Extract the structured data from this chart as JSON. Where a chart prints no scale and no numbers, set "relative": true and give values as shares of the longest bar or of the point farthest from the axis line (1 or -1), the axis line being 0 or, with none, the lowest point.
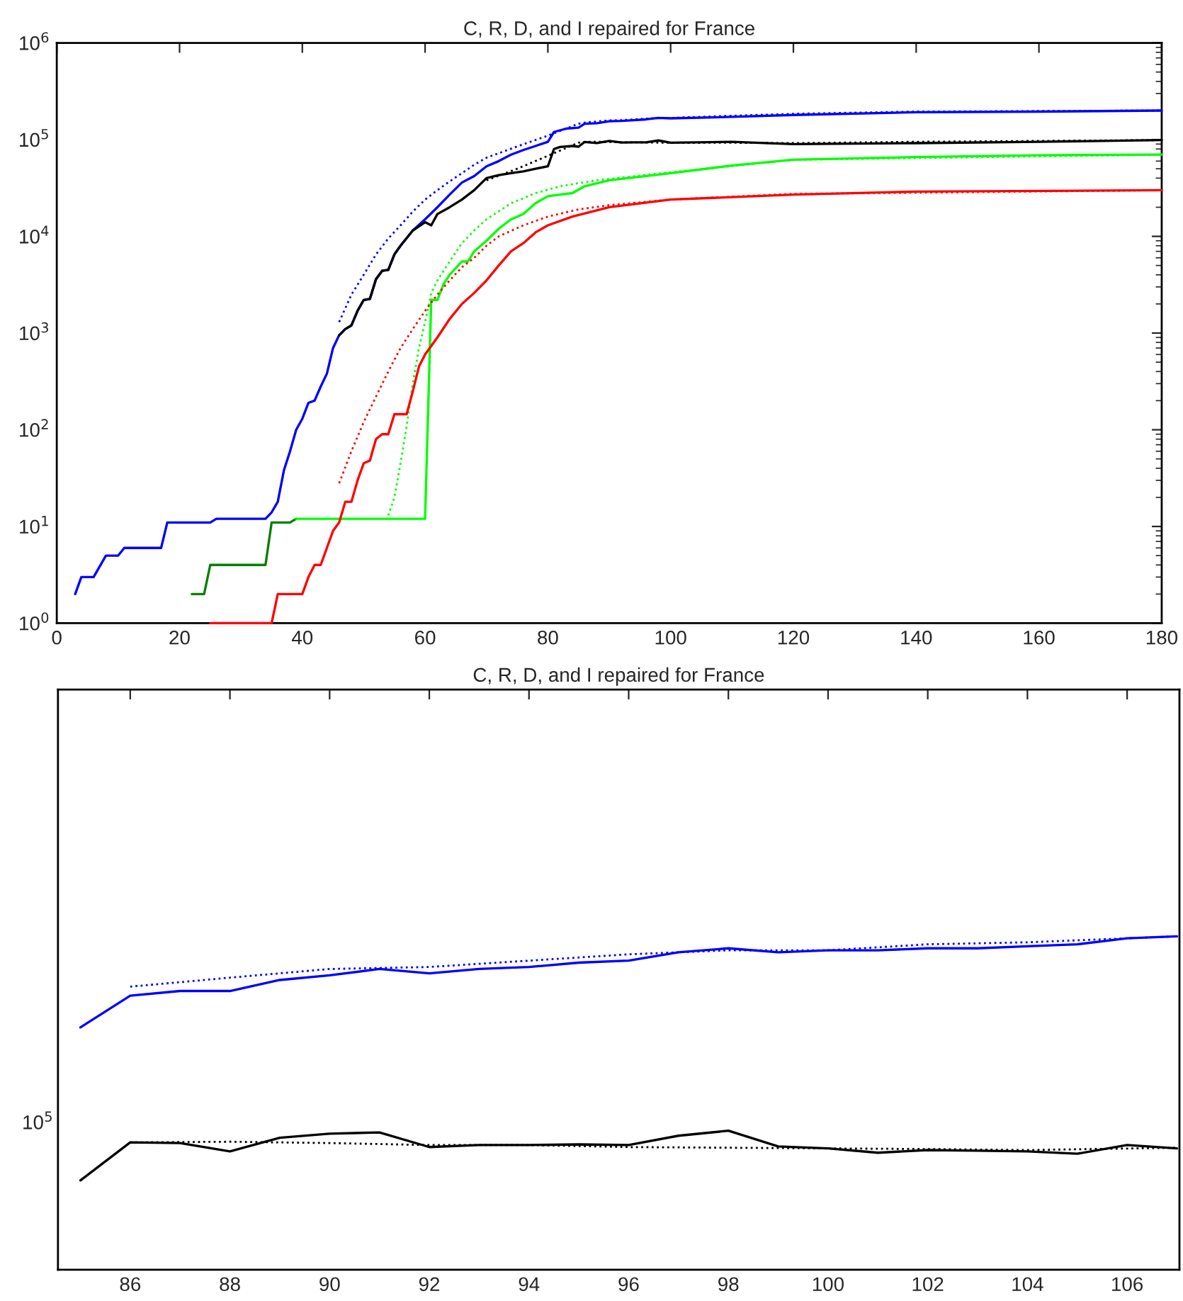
{
  "chart_data": [
    {
      "type": "line",
      "title": "C, R, D, and I repaired for France",
      "log": true,
      "xlim": [
        0,
        180
      ],
      "ylim": [
        1,
        1000000
      ],
      "xticks": [
        0,
        20,
        40,
        60,
        80,
        100,
        120,
        140,
        160,
        180
      ],
      "yticks": [
        {
          "value": 1,
          "label": "10$^{0}$"
        },
        {
          "value": 10,
          "label": "10$^{1}$"
        },
        {
          "value": 100,
          "label": "10$^{2}$"
        },
        {
          "value": 1000,
          "label": "10$^{3}$"
        },
        {
          "value": 10000,
          "label": "10$^{4}$"
        },
        {
          "value": 100000,
          "label": "10$^{5}$"
        },
        {
          "value": 1000000,
          "label": "10$^{6}$"
        }
      ],
      "series": [
        {
          "color": "#0000ff",
          "line_style": "solid",
          "x": [
            3,
            4,
            6,
            8,
            10,
            11,
            17,
            18,
            25,
            26,
            34,
            35,
            36,
            37,
            38,
            39,
            40,
            41,
            42,
            43,
            44,
            45,
            46,
            47,
            48,
            49,
            50,
            51,
            52,
            53,
            54,
            55,
            56,
            58,
            60,
            62,
            64,
            66,
            68,
            70,
            72,
            74,
            76,
            78,
            80,
            81,
            83,
            85,
            86,
            88,
            90,
            92,
            94,
            96,
            98,
            100,
            110,
            120,
            140,
            160,
            180
          ],
          "values": [
            2,
            3,
            3,
            5,
            5,
            6,
            6,
            11,
            11,
            12,
            12,
            14,
            18,
            38,
            60,
            100,
            130,
            190,
            200,
            280,
            380,
            700,
            950,
            1100,
            1200,
            1700,
            2200,
            2250,
            3600,
            4400,
            4500,
            6500,
            8000,
            11500,
            15000,
            20000,
            27000,
            36000,
            42000,
            53000,
            60000,
            70000,
            78000,
            86000,
            95000,
            120000,
            130000,
            133000,
            146000,
            148000,
            155000,
            156000,
            159000,
            162000,
            168000,
            166000,
            172000,
            180000,
            192000,
            195000,
            200000
          ]
        },
        {
          "color": "#0000ff",
          "line_style": "dotted",
          "x": [
            46,
            48,
            50,
            52,
            54,
            56,
            58,
            60,
            62,
            64,
            66,
            68,
            70,
            75,
            80,
            85,
            86,
            88,
            90,
            92,
            94,
            96,
            98,
            100,
            102,
            104,
            107,
            120,
            140,
            180
          ],
          "values": [
            1300,
            2500,
            4000,
            6500,
            9500,
            13000,
            18000,
            24000,
            30000,
            37000,
            45000,
            55000,
            65000,
            85000,
            110000,
            146000,
            150000,
            154000,
            158000,
            159000,
            162000,
            165000,
            167000,
            167000,
            170000,
            171000,
            174000,
            185000,
            195000,
            200000
          ]
        },
        {
          "color": "#000000",
          "line_style": "solid",
          "x": [
            46,
            47,
            48,
            49,
            50,
            51,
            52,
            53,
            54,
            55,
            56,
            58,
            60,
            61,
            62,
            64,
            66,
            68,
            70,
            72,
            74,
            76,
            78,
            80,
            81,
            82,
            84,
            85,
            86,
            88,
            90,
            92,
            94,
            96,
            98,
            100,
            110,
            120,
            140,
            160,
            180
          ],
          "values": [
            950,
            1100,
            1200,
            1700,
            2200,
            2250,
            3600,
            4400,
            4500,
            6500,
            8000,
            11500,
            14000,
            13000,
            17000,
            20000,
            24000,
            30000,
            40000,
            43000,
            45000,
            47000,
            50000,
            53000,
            80000,
            84000,
            86000,
            84600,
            94700,
            92200,
            97100,
            93400,
            93900,
            93900,
            98000,
            93000,
            95000,
            90000,
            92000,
            95000,
            99000
          ]
        },
        {
          "color": "#000000",
          "line_style": "dotted",
          "x": [
            70,
            75,
            80,
            85,
            86,
            88,
            90,
            92,
            94,
            96,
            98,
            100,
            102,
            104,
            107,
            120,
            140,
            160,
            180
          ],
          "values": [
            38000,
            50000,
            68000,
            93000,
            94700,
            94900,
            94500,
            93900,
            93900,
            93400,
            93200,
            93000,
            92800,
            92600,
            93200,
            92000,
            95000,
            97000,
            99000
          ]
        },
        {
          "color": "#008000",
          "line_style": "solid",
          "x": [
            22,
            24,
            25,
            34,
            35,
            38,
            39
          ],
          "values": [
            2,
            2,
            4,
            4,
            11,
            11,
            12
          ]
        },
        {
          "color": "#00ff00",
          "line_style": "solid",
          "x": [
            39,
            60,
            61,
            62,
            63,
            64,
            66,
            67,
            68,
            70,
            72,
            74,
            76,
            78,
            80,
            82,
            84,
            86,
            90,
            100,
            110,
            120,
            140,
            160,
            180
          ],
          "values": [
            12,
            12,
            2200,
            2200,
            3200,
            4000,
            5500,
            5500,
            7000,
            9000,
            12000,
            15000,
            17000,
            22000,
            26000,
            27000,
            28000,
            33000,
            38000,
            45000,
            54000,
            62000,
            66000,
            69000,
            70000
          ]
        },
        {
          "color": "#00ff00",
          "line_style": "dotted",
          "x": [
            54,
            55,
            56,
            57,
            58,
            59,
            60,
            61,
            62,
            64,
            66,
            68,
            70,
            74,
            78,
            82,
            88,
            100,
            120,
            180
          ],
          "values": [
            13,
            20,
            45,
            110,
            300,
            700,
            1300,
            2600,
            3500,
            5500,
            8500,
            11500,
            15000,
            22000,
            28000,
            33000,
            38000,
            46000,
            62000,
            70000
          ]
        },
        {
          "color": "#ff0000",
          "line_style": "solid",
          "x": [
            25,
            35,
            36,
            40,
            41,
            42,
            43,
            44,
            45,
            46,
            47,
            48,
            49,
            50,
            51,
            52,
            53,
            54,
            55,
            57,
            58,
            59,
            60,
            62,
            64,
            66,
            68,
            70,
            72,
            74,
            76,
            78,
            80,
            84,
            90,
            100,
            120,
            140,
            180
          ],
          "values": [
            1,
            1,
            2,
            2,
            3,
            4,
            4,
            6,
            9,
            11,
            18,
            18,
            30,
            45,
            48,
            80,
            90,
            90,
            145,
            145,
            250,
            450,
            600,
            900,
            1400,
            2000,
            2600,
            3500,
            5000,
            7000,
            8500,
            11000,
            13000,
            16000,
            20000,
            24000,
            27000,
            29000,
            30000
          ]
        },
        {
          "color": "#ff0000",
          "line_style": "dotted",
          "x": [
            46,
            48,
            50,
            52,
            54,
            56,
            58,
            60,
            62,
            64,
            66,
            68,
            70,
            72,
            76,
            80,
            85,
            90,
            100,
            120,
            180
          ],
          "values": [
            28,
            60,
            120,
            220,
            400,
            700,
            1100,
            1700,
            2500,
            3500,
            4800,
            6000,
            8000,
            10000,
            13000,
            16000,
            19000,
            21000,
            24000,
            27500,
            30000
          ]
        }
      ]
    },
    {
      "type": "line",
      "title": "C, R, D, and I repaired for France",
      "relative": true,
      "annotations": [
        "10$^{5}$"
      ],
      "xlim": [
        84.55,
        107.05
      ],
      "xticks": [
        86,
        88,
        90,
        92,
        94,
        96,
        98,
        100,
        102,
        104,
        106
      ],
      "series": [
        {
          "color": "#0000ff",
          "line_style": "solid",
          "x": [
            85,
            86,
            87,
            88,
            89,
            90,
            91,
            92,
            93,
            94,
            95,
            96,
            97,
            98,
            99,
            100,
            101,
            102,
            103,
            104,
            105,
            106,
            107
          ],
          "values": [
            0.727,
            0.822,
            0.836,
            0.836,
            0.869,
            0.883,
            0.902,
            0.889,
            0.902,
            0.908,
            0.921,
            0.927,
            0.952,
            0.964,
            0.952,
            0.958,
            0.958,
            0.964,
            0.964,
            0.97,
            0.976,
            0.994,
            1
          ]
        },
        {
          "color": "#0000ff",
          "line_style": "dotted",
          "x": [
            86,
            88,
            90,
            92,
            94,
            96,
            98,
            100,
            102,
            104,
            107
          ],
          "values": [
            0.849,
            0.876,
            0.902,
            0.908,
            0.927,
            0.946,
            0.958,
            0.958,
            0.976,
            0.982,
            1
          ]
        },
        {
          "color": "#000000",
          "line_style": "solid",
          "x": [
            85,
            86,
            87,
            88,
            89,
            90,
            91,
            92,
            93,
            94,
            95,
            96,
            97,
            98,
            99,
            100,
            101,
            102,
            103,
            104,
            105,
            106,
            107
          ],
          "values": [
            0.268,
            0.382,
            0.38,
            0.355,
            0.396,
            0.408,
            0.412,
            0.368,
            0.374,
            0.374,
            0.376,
            0.374,
            0.402,
            0.417,
            0.37,
            0.364,
            0.351,
            0.359,
            0.357,
            0.355,
            0.348,
            0.374,
            0.364
          ]
        },
        {
          "color": "#000000",
          "line_style": "dotted",
          "x": [
            86,
            88,
            90,
            92,
            94,
            96,
            98,
            100,
            102,
            104,
            107
          ],
          "values": [
            0.382,
            0.384,
            0.38,
            0.374,
            0.374,
            0.368,
            0.366,
            0.364,
            0.362,
            0.359,
            0.366
          ]
        }
      ]
    }
  ]
}
